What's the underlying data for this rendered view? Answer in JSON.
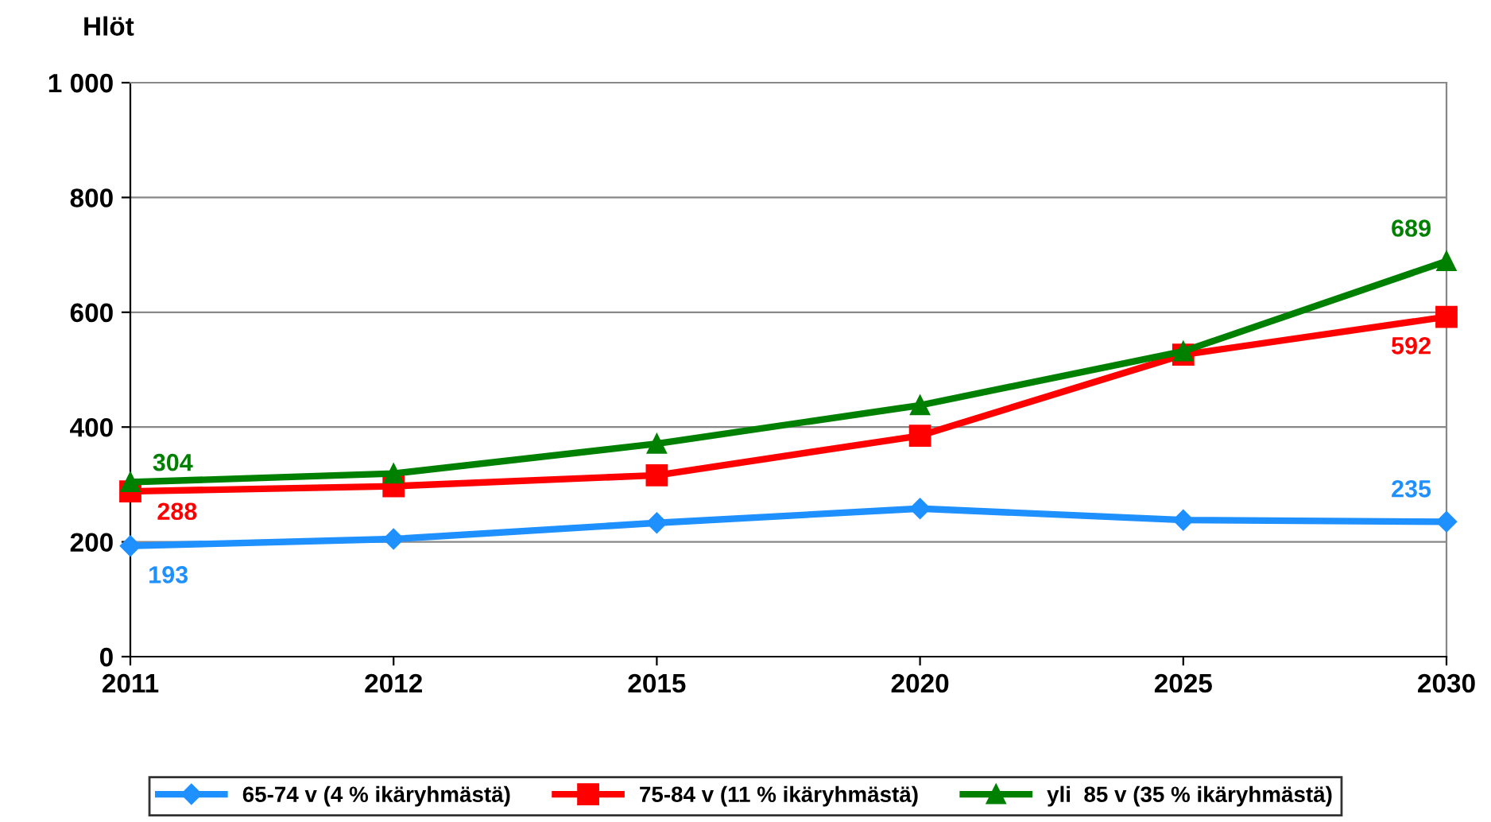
{
  "chart_data": {
    "type": "line",
    "ylabel": "Hlöt",
    "categories": [
      "2011",
      "2012",
      "2015",
      "2020",
      "2025",
      "2030"
    ],
    "series": [
      {
        "name": "65-74 v (4 % ikäryhmästä)",
        "color": "#1e90ff",
        "marker": "diamond",
        "values": [
          193,
          205,
          233,
          258,
          238,
          235
        ],
        "value_labels": [
          "193",
          null,
          null,
          null,
          null,
          "235"
        ]
      },
      {
        "name": "75-84 v (11 % ikäryhmästä)",
        "color": "#ff0000",
        "marker": "square",
        "values": [
          288,
          297,
          316,
          385,
          526,
          592
        ],
        "value_labels": [
          "288",
          null,
          null,
          null,
          null,
          "592"
        ]
      },
      {
        "name": "yli  85 v (35 % ikäryhmästä)",
        "color": "#008000",
        "marker": "triangle",
        "values": [
          304,
          319,
          371,
          438,
          532,
          689
        ],
        "value_labels": [
          "304",
          null,
          null,
          null,
          null,
          "689"
        ]
      }
    ],
    "ylim": [
      0,
      1000
    ],
    "yticks": [
      0,
      200,
      400,
      600,
      800,
      {
        "value": 1000,
        "label": "1 000"
      }
    ],
    "grid": "y",
    "legend": "bottom"
  }
}
